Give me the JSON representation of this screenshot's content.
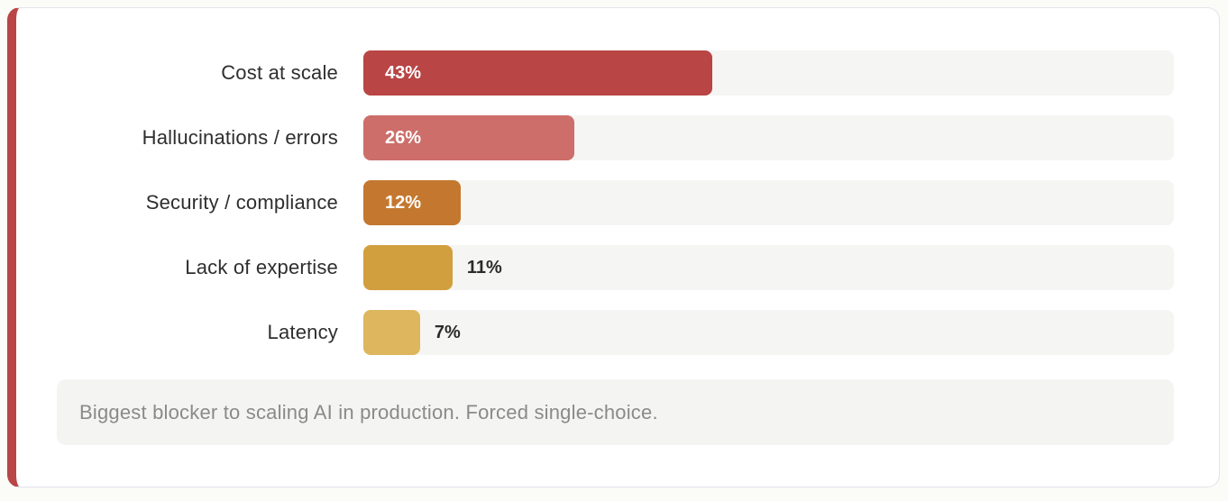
{
  "accent_color": "#b94545",
  "chart_data": {
    "type": "bar",
    "orientation": "horizontal",
    "title": "",
    "categories": [
      "Cost at scale",
      "Hallucinations / errors",
      "Security / compliance",
      "Lack of expertise",
      "Latency"
    ],
    "values": [
      43,
      26,
      12,
      11,
      7
    ],
    "value_labels": [
      "43%",
      "26%",
      "12%",
      "11%",
      "7%"
    ],
    "bar_colors": [
      "#b94545",
      "#cd6e6b",
      "#c4782f",
      "#d29f3e",
      "#ddb65d"
    ],
    "track_color": "#f5f5f3",
    "xlim": [
      0,
      100
    ],
    "grid": false,
    "legend": false,
    "caption": "Biggest blocker to scaling AI in production. Forced single-choice."
  }
}
